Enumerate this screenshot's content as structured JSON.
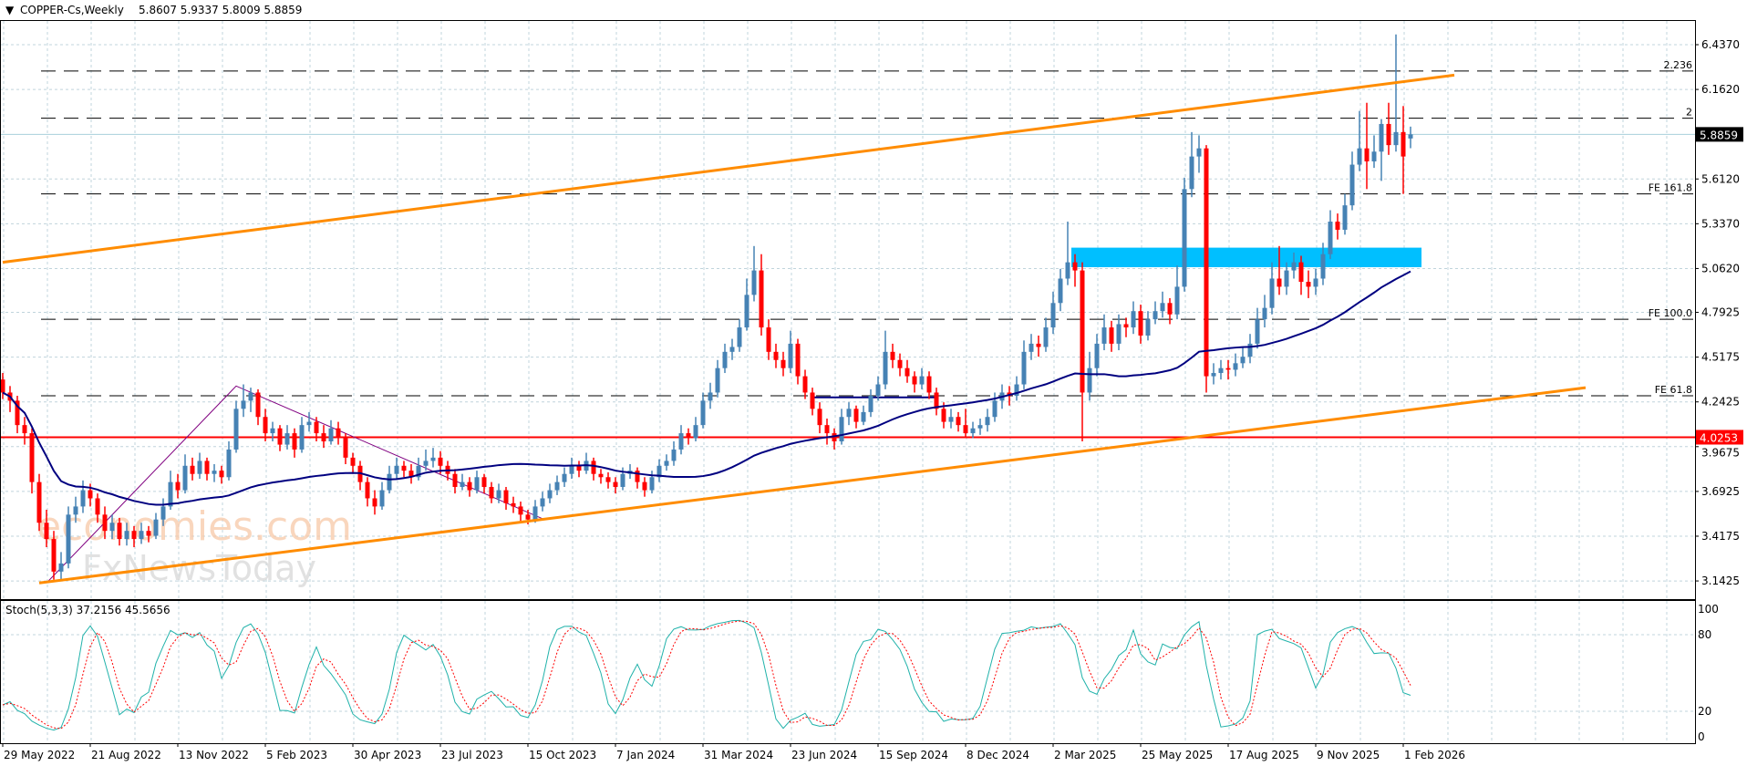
{
  "header": {
    "arrow_icon": "triangle-down-icon",
    "title": "COPPER-Cs,Weekly",
    "ohlc": "5.8607 5.9337 5.8009 5.8859"
  },
  "watermark": {
    "line1": "economies.com",
    "line2": "FxNewsToday"
  },
  "colors": {
    "bull": "#4682b4",
    "bear": "#ff0000",
    "ma": "#000080",
    "channel": "#ff8c00",
    "zone": "#00bfff",
    "support": "#ff0000",
    "stoch_main": "#20b2aa",
    "stoch_signal": "#ff0000",
    "grid": "#c0d4dc"
  },
  "chart_data": [
    {
      "type": "candlestick",
      "title": "COPPER-Cs,Weekly",
      "price_ticks": [
        "6.4370",
        "6.1620",
        "5.6120",
        "5.3370",
        "5.0620",
        "4.7925",
        "4.5175",
        "4.2425",
        "3.9675",
        "3.6925",
        "3.4175",
        "3.1425"
      ],
      "ylim": [
        3.1,
        6.55
      ],
      "current_price": "5.8859",
      "support_level": "4.0253",
      "date_labels": [
        "29 May 2022",
        "21 Aug 2022",
        "13 Nov 2022",
        "5 Feb 2023",
        "30 Apr 2023",
        "23 Jul 2023",
        "15 Oct 2023",
        "7 Jan 2024",
        "31 Mar 2024",
        "23 Jun 2024",
        "15 Sep 2024",
        "8 Dec 2024",
        "2 Mar 2025",
        "25 May 2025",
        "17 Aug 2025",
        "9 Nov 2025",
        "1 Feb 2026"
      ],
      "grid": true,
      "fib_levels": [
        {
          "label": "2.236",
          "price": 6.275
        },
        {
          "label": "2",
          "price": 5.985
        },
        {
          "label": "FE 161.8",
          "price": 5.52
        },
        {
          "label": "FE 100.0",
          "price": 4.75
        },
        {
          "label": "FE 61.8",
          "price": 4.28
        }
      ],
      "zone": {
        "from_week": 147,
        "to_week": 195,
        "low": 5.07,
        "high": 5.19
      },
      "channel_upper": [
        [
          0,
          5.1
        ],
        [
          199,
          6.25
        ]
      ],
      "channel_lower": [
        [
          5,
          3.13
        ],
        [
          217,
          4.33
        ]
      ],
      "purple_lines": [
        [
          [
            6,
            3.13
          ],
          [
            32,
            4.34
          ],
          [
            74,
            3.525
          ]
        ]
      ],
      "navy_segment": [
        [
          111,
          4.27
        ],
        [
          128,
          4.27
        ]
      ],
      "candles": [
        [
          4.38,
          4.42,
          4.26,
          4.3
        ],
        [
          4.3,
          4.34,
          4.18,
          4.25
        ],
        [
          4.25,
          4.28,
          4.05,
          4.1
        ],
        [
          4.1,
          4.15,
          3.98,
          4.05
        ],
        [
          4.05,
          4.08,
          3.68,
          3.75
        ],
        [
          3.75,
          3.8,
          3.45,
          3.5
        ],
        [
          3.5,
          3.58,
          3.35,
          3.4
        ],
        [
          3.4,
          3.45,
          3.15,
          3.2
        ],
        [
          3.2,
          3.32,
          3.14,
          3.25
        ],
        [
          3.25,
          3.6,
          3.22,
          3.55
        ],
        [
          3.55,
          3.66,
          3.5,
          3.6
        ],
        [
          3.6,
          3.76,
          3.56,
          3.7
        ],
        [
          3.7,
          3.74,
          3.6,
          3.65
        ],
        [
          3.65,
          3.68,
          3.5,
          3.55
        ],
        [
          3.55,
          3.6,
          3.4,
          3.45
        ],
        [
          3.45,
          3.55,
          3.4,
          3.5
        ],
        [
          3.5,
          3.53,
          3.36,
          3.4
        ],
        [
          3.4,
          3.5,
          3.36,
          3.45
        ],
        [
          3.45,
          3.48,
          3.35,
          3.4
        ],
        [
          3.4,
          3.5,
          3.37,
          3.45
        ],
        [
          3.45,
          3.48,
          3.38,
          3.42
        ],
        [
          3.42,
          3.56,
          3.4,
          3.52
        ],
        [
          3.52,
          3.65,
          3.48,
          3.6
        ],
        [
          3.6,
          3.82,
          3.58,
          3.75
        ],
        [
          3.75,
          3.8,
          3.65,
          3.7
        ],
        [
          3.7,
          3.92,
          3.68,
          3.85
        ],
        [
          3.85,
          3.9,
          3.76,
          3.8
        ],
        [
          3.8,
          3.93,
          3.77,
          3.88
        ],
        [
          3.88,
          3.9,
          3.76,
          3.8
        ],
        [
          3.8,
          3.86,
          3.75,
          3.82
        ],
        [
          3.82,
          3.85,
          3.74,
          3.78
        ],
        [
          3.78,
          4.0,
          3.76,
          3.95
        ],
        [
          3.95,
          4.25,
          3.93,
          4.2
        ],
        [
          4.2,
          4.35,
          4.15,
          4.25
        ],
        [
          4.25,
          4.33,
          4.18,
          4.3
        ],
        [
          4.3,
          4.32,
          4.1,
          4.15
        ],
        [
          4.15,
          4.2,
          4.0,
          4.05
        ],
        [
          4.05,
          4.12,
          4.0,
          4.08
        ],
        [
          4.08,
          4.1,
          3.94,
          3.98
        ],
        [
          3.98,
          4.1,
          3.95,
          4.05
        ],
        [
          4.05,
          4.08,
          3.9,
          3.95
        ],
        [
          3.95,
          4.15,
          3.93,
          4.1
        ],
        [
          4.1,
          4.18,
          4.06,
          4.12
        ],
        [
          4.12,
          4.15,
          4.0,
          4.05
        ],
        [
          4.05,
          4.1,
          3.96,
          4.0
        ],
        [
          4.0,
          4.13,
          3.98,
          4.08
        ],
        [
          4.08,
          4.12,
          3.98,
          4.02
        ],
        [
          4.02,
          4.05,
          3.86,
          3.9
        ],
        [
          3.9,
          3.93,
          3.8,
          3.85
        ],
        [
          3.85,
          3.88,
          3.7,
          3.75
        ],
        [
          3.75,
          3.78,
          3.6,
          3.65
        ],
        [
          3.65,
          3.7,
          3.55,
          3.6
        ],
        [
          3.6,
          3.75,
          3.58,
          3.7
        ],
        [
          3.7,
          3.85,
          3.68,
          3.8
        ],
        [
          3.8,
          3.9,
          3.77,
          3.85
        ],
        [
          3.85,
          3.88,
          3.78,
          3.82
        ],
        [
          3.82,
          3.86,
          3.74,
          3.78
        ],
        [
          3.78,
          3.9,
          3.76,
          3.85
        ],
        [
          3.85,
          3.95,
          3.82,
          3.88
        ],
        [
          3.88,
          3.96,
          3.84,
          3.9
        ],
        [
          3.9,
          3.94,
          3.8,
          3.85
        ],
        [
          3.85,
          3.88,
          3.76,
          3.8
        ],
        [
          3.8,
          3.83,
          3.68,
          3.72
        ],
        [
          3.72,
          3.8,
          3.7,
          3.75
        ],
        [
          3.75,
          3.78,
          3.66,
          3.7
        ],
        [
          3.7,
          3.82,
          3.68,
          3.78
        ],
        [
          3.78,
          3.8,
          3.68,
          3.72
        ],
        [
          3.72,
          3.75,
          3.62,
          3.65
        ],
        [
          3.65,
          3.74,
          3.62,
          3.7
        ],
        [
          3.7,
          3.72,
          3.58,
          3.62
        ],
        [
          3.62,
          3.66,
          3.56,
          3.6
        ],
        [
          3.6,
          3.63,
          3.51,
          3.55
        ],
        [
          3.55,
          3.58,
          3.49,
          3.52
        ],
        [
          3.52,
          3.64,
          3.5,
          3.6
        ],
        [
          3.6,
          3.69,
          3.57,
          3.65
        ],
        [
          3.65,
          3.74,
          3.62,
          3.7
        ],
        [
          3.7,
          3.79,
          3.67,
          3.75
        ],
        [
          3.75,
          3.84,
          3.72,
          3.8
        ],
        [
          3.8,
          3.9,
          3.77,
          3.85
        ],
        [
          3.85,
          3.88,
          3.78,
          3.82
        ],
        [
          3.82,
          3.93,
          3.8,
          3.88
        ],
        [
          3.88,
          3.9,
          3.76,
          3.8
        ],
        [
          3.8,
          3.83,
          3.74,
          3.78
        ],
        [
          3.78,
          3.81,
          3.71,
          3.75
        ],
        [
          3.75,
          3.78,
          3.68,
          3.72
        ],
        [
          3.72,
          3.84,
          3.7,
          3.8
        ],
        [
          3.8,
          3.86,
          3.77,
          3.82
        ],
        [
          3.82,
          3.84,
          3.71,
          3.75
        ],
        [
          3.75,
          3.78,
          3.66,
          3.7
        ],
        [
          3.7,
          3.82,
          3.68,
          3.78
        ],
        [
          3.78,
          3.89,
          3.75,
          3.85
        ],
        [
          3.85,
          3.92,
          3.82,
          3.88
        ],
        [
          3.88,
          4.0,
          3.85,
          3.95
        ],
        [
          3.95,
          4.1,
          3.92,
          4.05
        ],
        [
          4.05,
          4.08,
          3.98,
          4.02
        ],
        [
          4.02,
          4.15,
          4.0,
          4.1
        ],
        [
          4.1,
          4.3,
          4.08,
          4.25
        ],
        [
          4.25,
          4.36,
          4.2,
          4.3
        ],
        [
          4.3,
          4.5,
          4.27,
          4.45
        ],
        [
          4.45,
          4.6,
          4.42,
          4.55
        ],
        [
          4.55,
          4.63,
          4.5,
          4.58
        ],
        [
          4.58,
          4.75,
          4.55,
          4.7
        ],
        [
          4.7,
          5.0,
          4.68,
          4.9
        ],
        [
          4.9,
          5.2,
          4.86,
          5.05
        ],
        [
          5.05,
          5.15,
          4.65,
          4.7
        ],
        [
          4.7,
          4.75,
          4.5,
          4.55
        ],
        [
          4.55,
          4.6,
          4.45,
          4.5
        ],
        [
          4.5,
          4.55,
          4.4,
          4.45
        ],
        [
          4.45,
          4.68,
          4.42,
          4.6
        ],
        [
          4.6,
          4.63,
          4.35,
          4.4
        ],
        [
          4.4,
          4.44,
          4.26,
          4.3
        ],
        [
          4.3,
          4.33,
          4.16,
          4.2
        ],
        [
          4.2,
          4.24,
          4.05,
          4.1
        ],
        [
          4.1,
          4.14,
          3.98,
          4.05
        ],
        [
          4.05,
          4.08,
          3.95,
          4.0
        ],
        [
          4.0,
          4.2,
          3.98,
          4.15
        ],
        [
          4.15,
          4.24,
          4.1,
          4.2
        ],
        [
          4.2,
          4.22,
          4.08,
          4.12
        ],
        [
          4.12,
          4.22,
          4.1,
          4.18
        ],
        [
          4.18,
          4.32,
          4.15,
          4.28
        ],
        [
          4.28,
          4.4,
          4.25,
          4.35
        ],
        [
          4.35,
          4.68,
          4.32,
          4.55
        ],
        [
          4.55,
          4.6,
          4.45,
          4.5
        ],
        [
          4.5,
          4.54,
          4.4,
          4.45
        ],
        [
          4.45,
          4.5,
          4.36,
          4.4
        ],
        [
          4.4,
          4.43,
          4.3,
          4.35
        ],
        [
          4.35,
          4.45,
          4.32,
          4.4
        ],
        [
          4.4,
          4.43,
          4.26,
          4.3
        ],
        [
          4.3,
          4.33,
          4.16,
          4.2
        ],
        [
          4.2,
          4.24,
          4.08,
          4.12
        ],
        [
          4.12,
          4.2,
          4.08,
          4.15
        ],
        [
          4.15,
          4.18,
          4.06,
          4.1
        ],
        [
          4.1,
          4.2,
          4.02,
          4.05
        ],
        [
          4.05,
          4.12,
          4.02,
          4.08
        ],
        [
          4.08,
          4.14,
          4.04,
          4.1
        ],
        [
          4.1,
          4.2,
          4.06,
          4.15
        ],
        [
          4.15,
          4.3,
          4.12,
          4.25
        ],
        [
          4.25,
          4.35,
          4.2,
          4.3
        ],
        [
          4.3,
          4.34,
          4.22,
          4.28
        ],
        [
          4.28,
          4.4,
          4.25,
          4.35
        ],
        [
          4.35,
          4.62,
          4.32,
          4.55
        ],
        [
          4.55,
          4.66,
          4.5,
          4.6
        ],
        [
          4.6,
          4.65,
          4.52,
          4.58
        ],
        [
          4.58,
          4.76,
          4.55,
          4.7
        ],
        [
          4.7,
          4.92,
          4.66,
          4.85
        ],
        [
          4.85,
          5.06,
          4.8,
          5.0
        ],
        [
          5.0,
          5.35,
          4.96,
          5.1
        ],
        [
          5.1,
          5.15,
          4.95,
          5.05
        ],
        [
          5.05,
          5.1,
          4.0,
          4.3
        ],
        [
          4.3,
          4.55,
          4.25,
          4.45
        ],
        [
          4.45,
          4.66,
          4.4,
          4.6
        ],
        [
          4.6,
          4.78,
          4.56,
          4.7
        ],
        [
          4.7,
          4.74,
          4.55,
          4.6
        ],
        [
          4.6,
          4.78,
          4.56,
          4.72
        ],
        [
          4.72,
          4.76,
          4.64,
          4.7
        ],
        [
          4.7,
          4.86,
          4.66,
          4.8
        ],
        [
          4.8,
          4.84,
          4.6,
          4.65
        ],
        [
          4.65,
          4.8,
          4.62,
          4.75
        ],
        [
          4.75,
          4.86,
          4.72,
          4.8
        ],
        [
          4.8,
          4.92,
          4.76,
          4.85
        ],
        [
          4.85,
          4.88,
          4.72,
          4.78
        ],
        [
          4.78,
          5.08,
          4.75,
          4.95
        ],
        [
          4.95,
          5.62,
          4.92,
          5.55
        ],
        [
          5.55,
          5.9,
          5.5,
          5.75
        ],
        [
          5.75,
          5.88,
          5.65,
          5.8
        ],
        [
          5.8,
          5.82,
          4.3,
          4.4
        ],
        [
          4.4,
          4.48,
          4.35,
          4.42
        ],
        [
          4.42,
          4.5,
          4.38,
          4.45
        ],
        [
          4.45,
          4.5,
          4.38,
          4.44
        ],
        [
          4.44,
          4.54,
          4.4,
          4.48
        ],
        [
          4.48,
          4.58,
          4.45,
          4.52
        ],
        [
          4.52,
          4.66,
          4.48,
          4.6
        ],
        [
          4.6,
          4.82,
          4.57,
          4.75
        ],
        [
          4.75,
          4.9,
          4.7,
          4.82
        ],
        [
          4.82,
          5.1,
          4.78,
          5.0
        ],
        [
          5.0,
          5.2,
          4.9,
          4.95
        ],
        [
          4.95,
          5.1,
          4.9,
          5.05
        ],
        [
          5.05,
          5.16,
          5.0,
          5.1
        ],
        [
          5.1,
          5.14,
          4.9,
          4.98
        ],
        [
          4.98,
          5.05,
          4.88,
          4.95
        ],
        [
          4.95,
          5.06,
          4.9,
          5.0
        ],
        [
          5.0,
          5.22,
          4.96,
          5.15
        ],
        [
          5.15,
          5.42,
          5.12,
          5.35
        ],
        [
          5.35,
          5.4,
          5.24,
          5.3
        ],
        [
          5.3,
          5.52,
          5.27,
          5.45
        ],
        [
          5.45,
          5.78,
          5.42,
          5.7
        ],
        [
          5.7,
          6.03,
          5.66,
          5.8
        ],
        [
          5.8,
          6.08,
          5.55,
          5.72
        ],
        [
          5.72,
          5.88,
          5.68,
          5.78
        ],
        [
          5.78,
          5.98,
          5.6,
          5.95
        ],
        [
          5.95,
          6.08,
          5.76,
          5.82
        ],
        [
          5.82,
          6.5,
          5.78,
          5.9
        ],
        [
          5.9,
          6.06,
          5.52,
          5.75
        ],
        [
          5.8607,
          5.9337,
          5.8009,
          5.8859
        ]
      ]
    },
    {
      "type": "line",
      "title": "Stoch(5,3,3) 37.2156 45.5656",
      "label": "Stoch(5,3,3) 37.2156 45.5656",
      "ticks": [
        "100",
        "80",
        "20",
        "0"
      ],
      "ylim": [
        0,
        100
      ],
      "levels": [
        80,
        20
      ]
    }
  ]
}
